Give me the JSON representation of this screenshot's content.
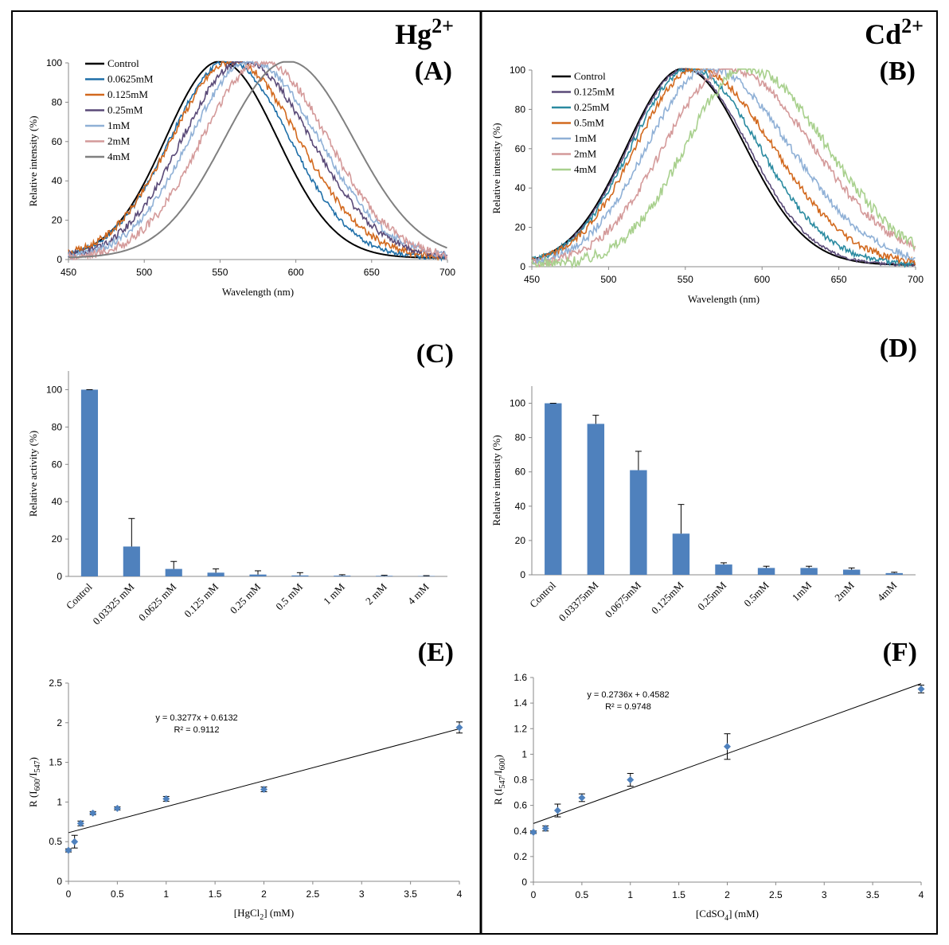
{
  "chart_data": [
    {
      "id": "A",
      "type": "line",
      "panel_label": "(A)",
      "header": {
        "element": "Hg",
        "charge": "2+"
      },
      "xlabel": "Wavelength (nm)",
      "ylabel": "Relative intensity (%)",
      "xlim": [
        450,
        700
      ],
      "ylim": [
        0,
        100
      ],
      "xticks": [
        450,
        500,
        550,
        600,
        650,
        700
      ],
      "yticks": [
        0,
        20,
        40,
        60,
        80,
        100
      ],
      "legend": "top-left",
      "series": [
        {
          "name": "Control",
          "color": "#000000",
          "peak": 550,
          "sl": 36,
          "sr": 38,
          "noise": 0
        },
        {
          "name": "0.0625mM",
          "color": "#1f6fa8",
          "peak": 555,
          "sl": 38,
          "sr": 41,
          "noise": 0.8
        },
        {
          "name": "0.125mM",
          "color": "#d2691e",
          "peak": 558,
          "sl": 40,
          "sr": 44,
          "noise": 1.2
        },
        {
          "name": "0.25mM",
          "color": "#5a4a78",
          "peak": 565,
          "sl": 40,
          "sr": 45,
          "noise": 1.2
        },
        {
          "name": "1mM",
          "color": "#8fb0d6",
          "peak": 570,
          "sl": 40,
          "sr": 45,
          "noise": 1.2
        },
        {
          "name": "2mM",
          "color": "#d49a9a",
          "peak": 578,
          "sl": 40,
          "sr": 43,
          "noise": 1.5
        },
        {
          "name": "4mM",
          "color": "#808080",
          "peak": 595,
          "sl": 42,
          "sr": 43,
          "noise": 0
        }
      ]
    },
    {
      "id": "B",
      "type": "line",
      "panel_label": "(B)",
      "header": {
        "element": "Cd",
        "charge": "2+"
      },
      "xlabel": "Wavelength (nm)",
      "ylabel": "Relative intensity (%)",
      "xlim": [
        450,
        700
      ],
      "ylim": [
        0,
        100
      ],
      "xticks": [
        450,
        500,
        550,
        600,
        650,
        700
      ],
      "yticks": [
        0,
        20,
        40,
        60,
        80,
        100
      ],
      "legend": "top-left",
      "series": [
        {
          "name": "Control",
          "color": "#000000",
          "peak": 549,
          "sl": 37,
          "sr": 40,
          "noise": 0
        },
        {
          "name": "0.125mM",
          "color": "#5a4a78",
          "peak": 550,
          "sl": 37,
          "sr": 41,
          "noise": 0.5
        },
        {
          "name": "0.25mM",
          "color": "#2a8aa0",
          "peak": 553,
          "sl": 38,
          "sr": 45,
          "noise": 1
        },
        {
          "name": "0.5mM",
          "color": "#d2691e",
          "peak": 557,
          "sl": 39,
          "sr": 50,
          "noise": 1.2
        },
        {
          "name": "1mM",
          "color": "#8fb0d6",
          "peak": 565,
          "sl": 40,
          "sr": 53,
          "noise": 1.3
        },
        {
          "name": "2mM",
          "color": "#d49a9a",
          "peak": 578,
          "sl": 42,
          "sr": 55,
          "noise": 1.5
        },
        {
          "name": "4mM",
          "color": "#a8d08d",
          "peak": 590,
          "sl": 40,
          "sr": 52,
          "noise": 2
        }
      ]
    },
    {
      "id": "C",
      "type": "bar",
      "panel_label": "(C)",
      "ylabel": "Relative activity (%)",
      "ylim": [
        0,
        110
      ],
      "yticks": [
        0,
        20,
        40,
        60,
        80,
        100
      ],
      "bar_color": "#4f81bd",
      "categories": [
        "Control",
        "0.03325 mM",
        "0.0625 mM",
        "0.125 mM",
        "0.25 mM",
        "0.5 mM",
        "1 mM",
        "2 mM",
        "4 mM"
      ],
      "values": [
        100,
        16,
        4,
        2,
        1,
        0.5,
        0.4,
        0.3,
        0.2
      ],
      "errors": [
        0,
        15,
        4,
        2,
        2,
        1.5,
        0.5,
        0.3,
        0.2
      ]
    },
    {
      "id": "D",
      "type": "bar",
      "panel_label": "(D)",
      "ylabel": "Relative intensity (%)",
      "ylim": [
        0,
        110
      ],
      "yticks": [
        0,
        20,
        40,
        60,
        80,
        100
      ],
      "bar_color": "#4f81bd",
      "categories": [
        "Control",
        "0.03375mM",
        "0.0675mM",
        "0.125mM",
        "0.25mM",
        "0.5mM",
        "1mM",
        "2mM",
        "4mM"
      ],
      "values": [
        100,
        88,
        61,
        24,
        6,
        4,
        4,
        3,
        1
      ],
      "errors": [
        0,
        5,
        11,
        17,
        1,
        1,
        1,
        1,
        0.5
      ]
    },
    {
      "id": "E",
      "type": "scatter",
      "panel_label": "(E)",
      "xlabel_main": "[HgCl",
      "xlabel_sub": "2",
      "xlabel_tail": "] (mM)",
      "ylabel_parts": {
        "main": "R (I",
        "sub1": "600",
        "mid": "/I",
        "sub2": "547",
        "end": ")"
      },
      "xlim": [
        0,
        4
      ],
      "ylim": [
        0,
        2.5
      ],
      "xticks": [
        "0",
        "0.5",
        "1",
        "1.5",
        "2",
        "2.5",
        "3",
        "3.5",
        "4"
      ],
      "yticks": [
        "0",
        "0.5",
        "1",
        "1.5",
        "2",
        "2.5"
      ],
      "equation": "y = 0.3277x + 0.6132",
      "r2": "R² = 0.9112",
      "fit": {
        "slope": 0.3277,
        "intercept": 0.6132
      },
      "marker_color": "#4f81bd",
      "points": [
        {
          "x": 0,
          "y": 0.39,
          "err": 0.02
        },
        {
          "x": 0.0625,
          "y": 0.5,
          "err": 0.08
        },
        {
          "x": 0.125,
          "y": 0.73,
          "err": 0.03
        },
        {
          "x": 0.25,
          "y": 0.86,
          "err": 0.02
        },
        {
          "x": 0.5,
          "y": 0.92,
          "err": 0.02
        },
        {
          "x": 1,
          "y": 1.04,
          "err": 0.03
        },
        {
          "x": 2,
          "y": 1.16,
          "err": 0.03
        },
        {
          "x": 4,
          "y": 1.94,
          "err": 0.07
        }
      ]
    },
    {
      "id": "F",
      "type": "scatter",
      "panel_label": "(F)",
      "xlabel_main": "[CdSO",
      "xlabel_sub": "4",
      "xlabel_tail": "] (mM)",
      "ylabel_parts": {
        "main": "R (I",
        "sub1": "547",
        "mid": "/I",
        "sub2": "600",
        "end": ")"
      },
      "xlim": [
        0,
        4
      ],
      "ylim": [
        0,
        1.6
      ],
      "xticks": [
        "0",
        "0.5",
        "1",
        "1.5",
        "2",
        "2.5",
        "3",
        "3.5",
        "4"
      ],
      "yticks": [
        "0",
        "0.2",
        "0.4",
        "0.6",
        "0.8",
        "1",
        "1.2",
        "1.4",
        "1.6"
      ],
      "equation": "y = 0.2736x + 0.4582",
      "r2": "R² = 0.9748",
      "fit": {
        "slope": 0.2736,
        "intercept": 0.4582
      },
      "marker_color": "#4f81bd",
      "points": [
        {
          "x": 0,
          "y": 0.39,
          "err": 0.01
        },
        {
          "x": 0.125,
          "y": 0.42,
          "err": 0.02
        },
        {
          "x": 0.25,
          "y": 0.56,
          "err": 0.05
        },
        {
          "x": 0.5,
          "y": 0.66,
          "err": 0.03
        },
        {
          "x": 1,
          "y": 0.8,
          "err": 0.05
        },
        {
          "x": 2,
          "y": 1.06,
          "err": 0.1
        },
        {
          "x": 4,
          "y": 1.51,
          "err": 0.03
        }
      ]
    }
  ]
}
